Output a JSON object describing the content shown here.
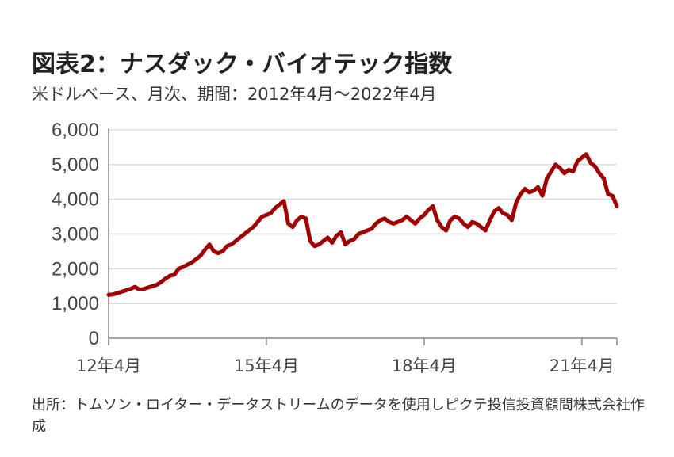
{
  "title": "図表2：ナスダック・バイオテック指数",
  "subtitle": "米ドルベース、月次、期間：2012年4月～2022年4月",
  "source": "出所：トムソン・ロイター・データストリームのデータを使用しピクテ投信投資顧問株式会社作成",
  "colors": {
    "line": "#a00000",
    "grid": "#d9d9d9",
    "axis": "#888888"
  },
  "chart_data": {
    "type": "line",
    "title": "図表2：ナスダック・バイオテック指数",
    "subtitle": "米ドルベース、月次、期間：2012年4月～2022年4月",
    "ylim": [
      0,
      6000
    ],
    "yticks": [
      0,
      1000,
      2000,
      3000,
      4000,
      5000,
      6000
    ],
    "ytick_labels": [
      "0",
      "1,000",
      "2,000",
      "3,000",
      "4,000",
      "5,000",
      "6,000"
    ],
    "xticks": [
      "12年4月",
      "15年4月",
      "18年4月",
      "21年4月"
    ],
    "x_start": "2012-04",
    "x_end": "2022-04",
    "grid": true,
    "series": [
      {
        "values": [
          1250,
          1260,
          1300,
          1340,
          1380,
          1420,
          1480,
          1400,
          1420,
          1460,
          1500,
          1540,
          1620,
          1720,
          1800,
          1830,
          2000,
          2050,
          2120,
          2180,
          2280,
          2380,
          2550,
          2700,
          2500,
          2450,
          2500,
          2650,
          2700,
          2800,
          2900,
          3000,
          3100,
          3200,
          3350,
          3500,
          3550,
          3600,
          3750,
          3850,
          3950,
          3300,
          3200,
          3400,
          3500,
          3450,
          2800,
          2650,
          2700,
          2800,
          2900,
          2750,
          2950,
          3050,
          2700,
          2800,
          2850,
          3000,
          3050,
          3100,
          3150,
          3300,
          3400,
          3450,
          3350,
          3300,
          3350,
          3400,
          3500,
          3400,
          3300,
          3450,
          3550,
          3700,
          3800,
          3400,
          3200,
          3100,
          3400,
          3500,
          3450,
          3300,
          3200,
          3350,
          3300,
          3200,
          3100,
          3400,
          3650,
          3750,
          3600,
          3550,
          3400,
          3900,
          4150,
          4300,
          4200,
          4250,
          4350,
          4100,
          4600,
          4800,
          5000,
          4900,
          4750,
          4850,
          4800,
          5100,
          5200,
          5300,
          5050,
          4950,
          4750,
          4600,
          4150,
          4100,
          3800
        ]
      }
    ]
  }
}
